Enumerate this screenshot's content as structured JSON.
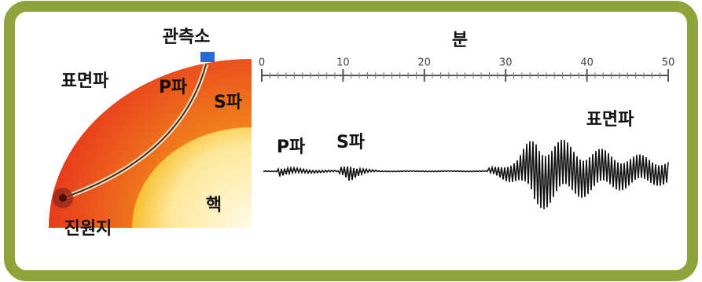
{
  "earth": {
    "station": "관측소",
    "surface_wave": "표면파",
    "p_wave": "P파",
    "s_wave": "S파",
    "core": "핵",
    "focus": "진원지"
  },
  "seismogram": {
    "axis_label": "분",
    "ticks": [
      0,
      10,
      20,
      30,
      40,
      50
    ],
    "p_wave": "P파",
    "s_wave": "S파",
    "surface_wave": "표면파"
  }
}
